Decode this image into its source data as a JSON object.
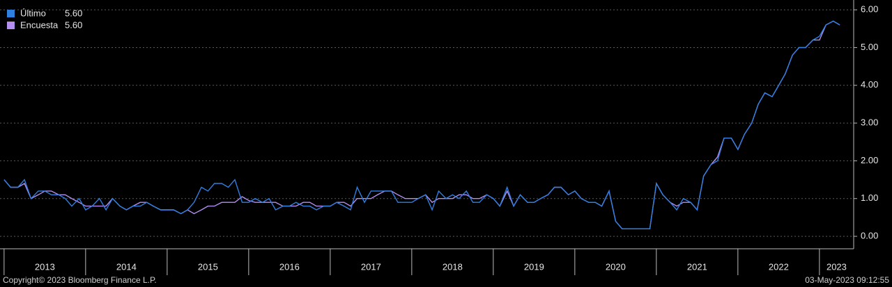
{
  "chart_data": {
    "type": "line",
    "footer_left": "Copyright© 2023 Bloomberg Finance L.P.",
    "footer_right": "03-May-2023 09:12:55",
    "x": [
      2013.0,
      2013.08,
      2013.17,
      2013.25,
      2013.33,
      2013.42,
      2013.5,
      2013.58,
      2013.67,
      2013.75,
      2013.83,
      2013.92,
      2014.0,
      2014.08,
      2014.17,
      2014.25,
      2014.33,
      2014.42,
      2014.5,
      2014.58,
      2014.67,
      2014.75,
      2014.83,
      2014.92,
      2015.0,
      2015.08,
      2015.17,
      2015.25,
      2015.33,
      2015.42,
      2015.5,
      2015.58,
      2015.67,
      2015.75,
      2015.83,
      2015.92,
      2016.0,
      2016.08,
      2016.17,
      2016.25,
      2016.33,
      2016.42,
      2016.5,
      2016.58,
      2016.67,
      2016.75,
      2016.83,
      2016.92,
      2017.0,
      2017.08,
      2017.17,
      2017.25,
      2017.33,
      2017.42,
      2017.5,
      2017.58,
      2017.67,
      2017.75,
      2017.83,
      2017.92,
      2018.0,
      2018.08,
      2018.17,
      2018.25,
      2018.33,
      2018.42,
      2018.5,
      2018.58,
      2018.67,
      2018.75,
      2018.83,
      2018.92,
      2019.0,
      2019.08,
      2019.17,
      2019.25,
      2019.33,
      2019.42,
      2019.5,
      2019.58,
      2019.67,
      2019.75,
      2019.83,
      2019.92,
      2020.0,
      2020.08,
      2020.17,
      2020.25,
      2020.33,
      2020.42,
      2020.5,
      2020.58,
      2020.67,
      2020.75,
      2020.83,
      2020.92,
      2021.0,
      2021.08,
      2021.17,
      2021.25,
      2021.33,
      2021.42,
      2021.5,
      2021.58,
      2021.67,
      2021.75,
      2021.83,
      2021.92,
      2022.0,
      2022.08,
      2022.17,
      2022.25,
      2022.33,
      2022.42,
      2022.5,
      2022.58,
      2022.67,
      2022.75,
      2022.83,
      2022.92,
      2023.0,
      2023.08,
      2023.17,
      2023.25
    ],
    "series": [
      {
        "name": "Último",
        "last": "5.60",
        "color": "#2f7fe0",
        "values": [
          1.5,
          1.3,
          1.3,
          1.5,
          1.0,
          1.2,
          1.2,
          1.1,
          1.1,
          1.0,
          0.8,
          1.0,
          0.7,
          0.8,
          1.0,
          0.7,
          1.0,
          0.8,
          0.7,
          0.8,
          0.8,
          0.9,
          0.8,
          0.7,
          0.7,
          0.7,
          0.6,
          0.7,
          0.9,
          1.3,
          1.2,
          1.4,
          1.4,
          1.3,
          1.5,
          0.9,
          0.9,
          1.0,
          0.9,
          1.0,
          0.7,
          0.8,
          0.8,
          0.9,
          0.8,
          0.8,
          0.7,
          0.8,
          0.8,
          0.9,
          0.8,
          0.7,
          1.3,
          0.9,
          1.2,
          1.2,
          1.2,
          1.2,
          0.9,
          0.9,
          0.9,
          1.0,
          1.1,
          0.7,
          1.2,
          1.0,
          1.1,
          1.0,
          1.2,
          0.9,
          0.9,
          1.1,
          1.0,
          0.8,
          1.3,
          0.8,
          1.1,
          0.9,
          0.9,
          1.0,
          1.1,
          1.3,
          1.3,
          1.1,
          1.2,
          1.0,
          0.9,
          0.9,
          0.8,
          1.2,
          0.4,
          0.2,
          0.2,
          0.2,
          0.2,
          0.2,
          1.4,
          1.1,
          0.9,
          0.7,
          1.0,
          0.9,
          0.7,
          1.6,
          1.9,
          2.0,
          2.6,
          2.6,
          2.3,
          2.7,
          3.0,
          3.5,
          3.8,
          3.7,
          4.0,
          4.3,
          4.8,
          5.0,
          5.0,
          5.2,
          5.3,
          5.6,
          5.7,
          5.6
        ]
      },
      {
        "name": "Encuesta",
        "last": "5.60",
        "color": "#b48ef0",
        "values": [
          1.5,
          1.3,
          1.3,
          1.4,
          1.0,
          1.1,
          1.2,
          1.2,
          1.1,
          1.1,
          1.0,
          0.9,
          0.8,
          0.8,
          0.8,
          0.8,
          1.0,
          0.8,
          0.7,
          0.8,
          0.9,
          0.9,
          0.8,
          0.7,
          0.7,
          0.7,
          0.6,
          0.7,
          0.6,
          0.7,
          0.8,
          0.8,
          0.9,
          0.9,
          0.9,
          1.05,
          0.95,
          0.9,
          0.9,
          0.9,
          0.9,
          0.8,
          0.8,
          0.8,
          0.9,
          0.9,
          0.8,
          0.8,
          0.8,
          0.9,
          0.9,
          0.8,
          1.0,
          1.0,
          1.0,
          1.1,
          1.2,
          1.2,
          1.1,
          1.0,
          1.0,
          1.0,
          1.1,
          0.9,
          1.0,
          1.0,
          1.0,
          1.1,
          1.1,
          1.0,
          1.0,
          1.1,
          1.0,
          0.8,
          1.2,
          0.8,
          1.1,
          0.9,
          0.9,
          1.0,
          1.1,
          1.3,
          1.3,
          1.1,
          1.2,
          1.0,
          0.9,
          0.9,
          0.8,
          1.2,
          0.4,
          0.2,
          0.2,
          0.2,
          0.2,
          0.2,
          1.4,
          1.1,
          0.9,
          0.8,
          0.9,
          0.9,
          0.7,
          1.6,
          1.9,
          2.1,
          2.6,
          2.6,
          2.3,
          2.7,
          3.0,
          3.5,
          3.8,
          3.7,
          4.0,
          4.3,
          4.8,
          5.0,
          5.0,
          5.2,
          5.2,
          5.6,
          5.7,
          5.6
        ]
      }
    ],
    "xlim": [
      2012.95,
      2023.42
    ],
    "xticks": [
      2013,
      2014,
      2015,
      2016,
      2017,
      2018,
      2019,
      2020,
      2021,
      2022,
      2023
    ],
    "ylim": [
      -0.33,
      6.26
    ],
    "yticks": [
      {
        "value": 0,
        "label": "0.00"
      },
      {
        "value": 1,
        "label": "1.00"
      },
      {
        "value": 2,
        "label": "2.00"
      },
      {
        "value": 3,
        "label": "3.00"
      },
      {
        "value": 4,
        "label": "4.00"
      },
      {
        "value": 5,
        "label": "5.00"
      },
      {
        "value": 6,
        "label": "6.00"
      }
    ],
    "grid": true
  }
}
